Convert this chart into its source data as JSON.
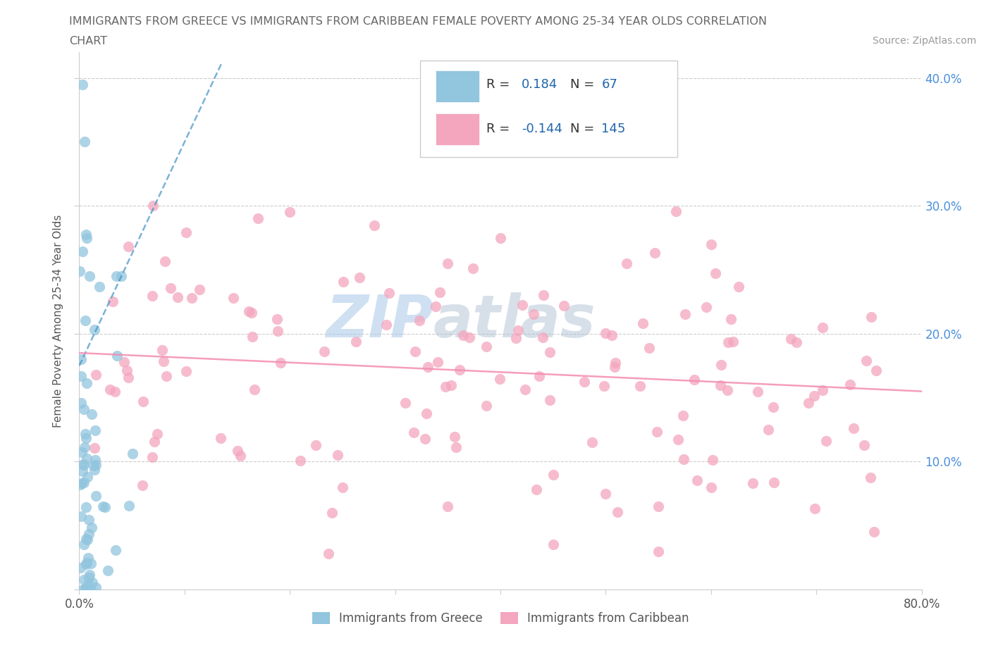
{
  "title_line1": "IMMIGRANTS FROM GREECE VS IMMIGRANTS FROM CARIBBEAN FEMALE POVERTY AMONG 25-34 YEAR OLDS CORRELATION",
  "title_line2": "CHART",
  "source": "Source: ZipAtlas.com",
  "ylabel": "Female Poverty Among 25-34 Year Olds",
  "xlim": [
    0.0,
    0.8
  ],
  "ylim": [
    0.0,
    0.42
  ],
  "greece_R": 0.184,
  "greece_N": 67,
  "caribbean_R": -0.144,
  "caribbean_N": 145,
  "greece_color": "#92c5de",
  "caribbean_color": "#f4a6be",
  "greece_trend_color": "#4292c6",
  "caribbean_trend_color": "#f48cb1",
  "legend_text_color": "#2166ac",
  "legend_label_color": "#333333",
  "right_tick_color": "#4a90d9",
  "title_color": "#666666",
  "source_color": "#999999"
}
